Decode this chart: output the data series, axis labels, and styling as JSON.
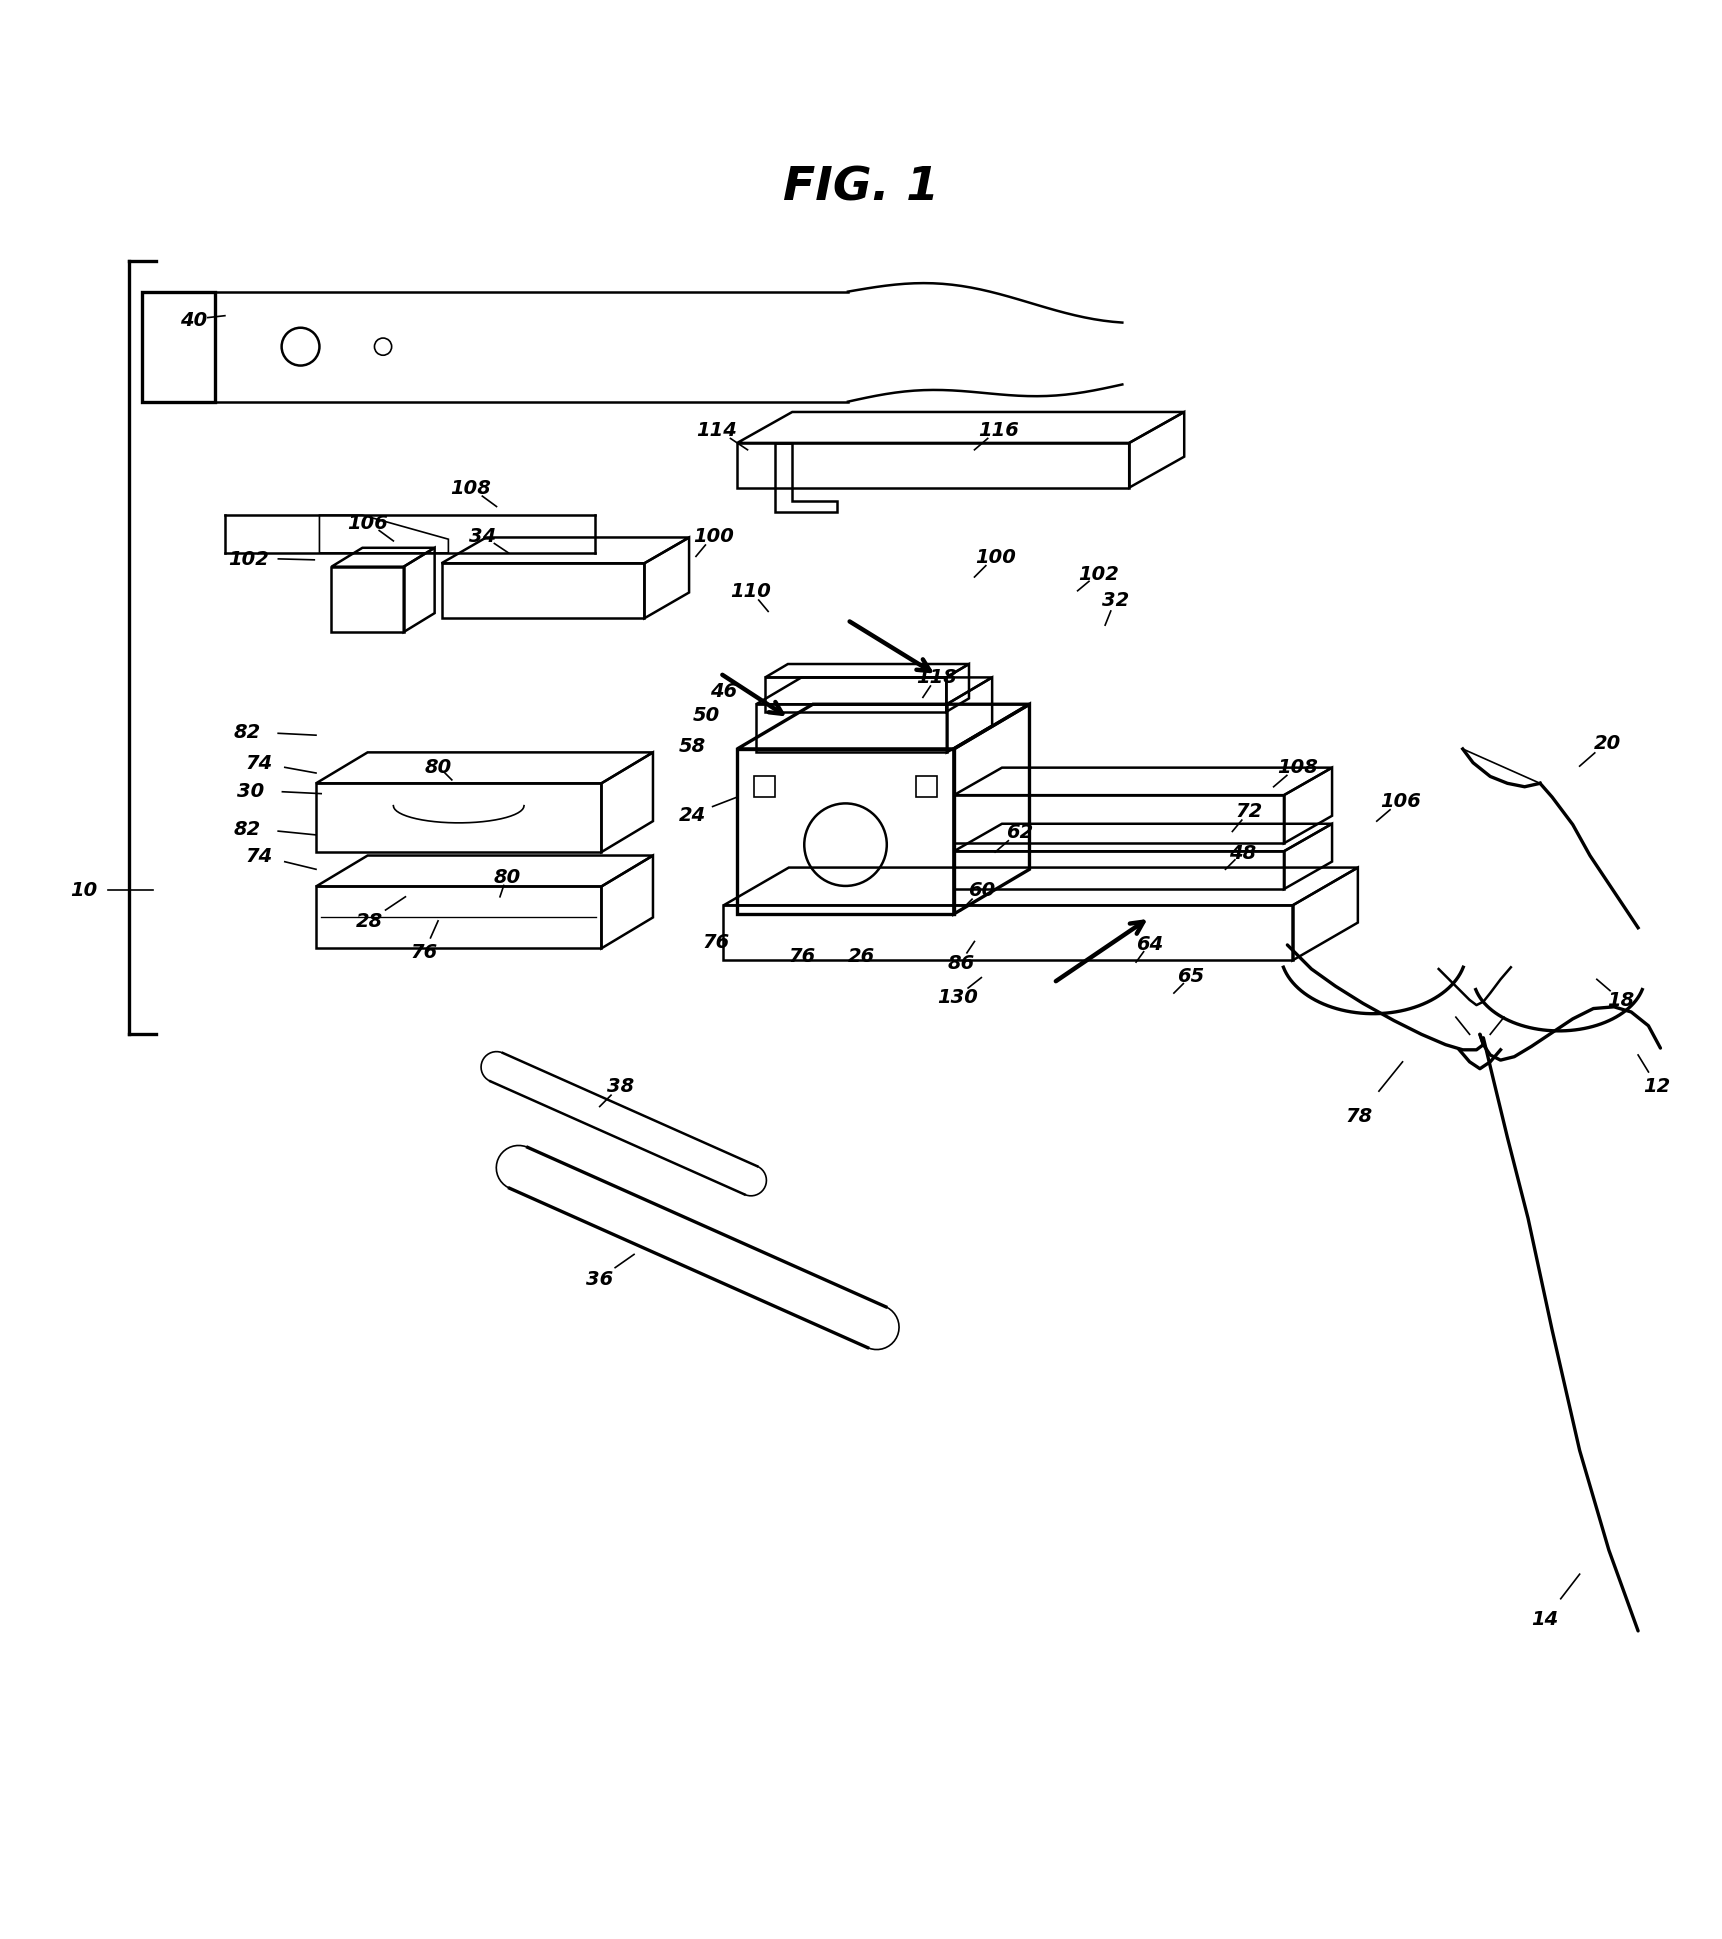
{
  "title": "FIG. 1",
  "bg": "#ffffff",
  "lc": "#000000"
}
